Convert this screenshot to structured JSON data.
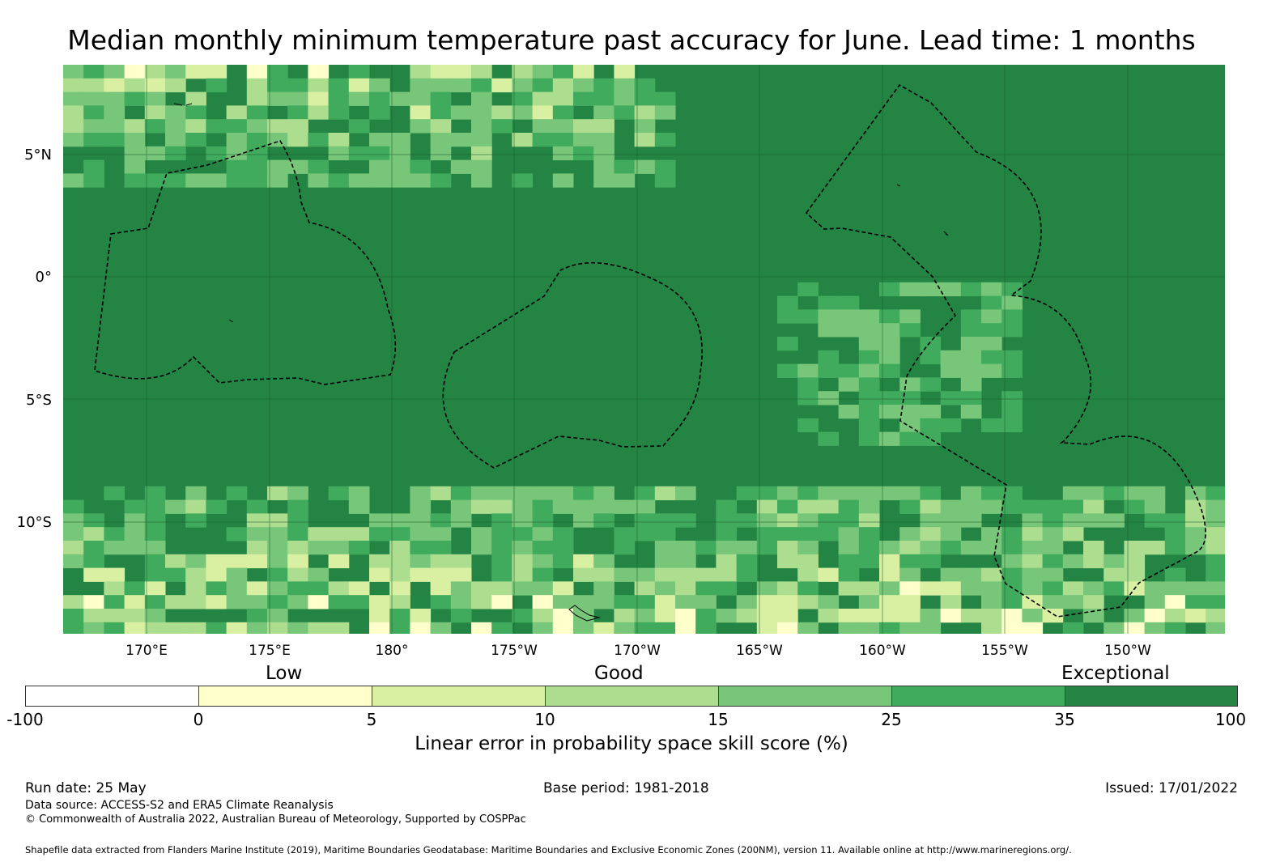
{
  "title": "Median monthly minimum temperature past accuracy for June. Lead time: 1 months",
  "map": {
    "latitude_labels": [
      "5°N",
      "0°",
      "5°S",
      "10°S"
    ],
    "longitude_labels": [
      "170°E",
      "175°E",
      "180°",
      "175°W",
      "170°W",
      "165°W",
      "160°W",
      "155°W",
      "150°W"
    ],
    "boundaries": "dashed maritime boundary outlines (EEZ 200NM)",
    "background_category": "35 to 100"
  },
  "colorbar": {
    "categories": [
      "Low",
      "Good",
      "Exceptional"
    ],
    "ticks": [
      "-100",
      "0",
      "5",
      "10",
      "15",
      "25",
      "35",
      "100"
    ],
    "colors": [
      "#ffffff",
      "#ffffcc",
      "#d9f0a3",
      "#addd8e",
      "#78c679",
      "#41ab5d",
      "#238443"
    ],
    "title": "Linear error in probability space skill score (%)"
  },
  "footer": {
    "run_date": "Run date: 25 May",
    "base_period": "Base period: 1981-2018",
    "issued": "Issued: 17/01/2022",
    "data_source": "Data source: ACCESS-S2 and ERA5 Climate Reanalysis",
    "copyright": "© Commonwealth of Australia 2022, Australian Bureau of Meteorology, Supported by COSPPac",
    "shapefile": "Shapefile data extracted from Flanders Marine Institute (2019), Maritime Boundaries Geodatabase: Maritime Boundaries and Exclusive Economic Zones (200NM), version 11. Available online at http://www.marineregions.org/."
  }
}
